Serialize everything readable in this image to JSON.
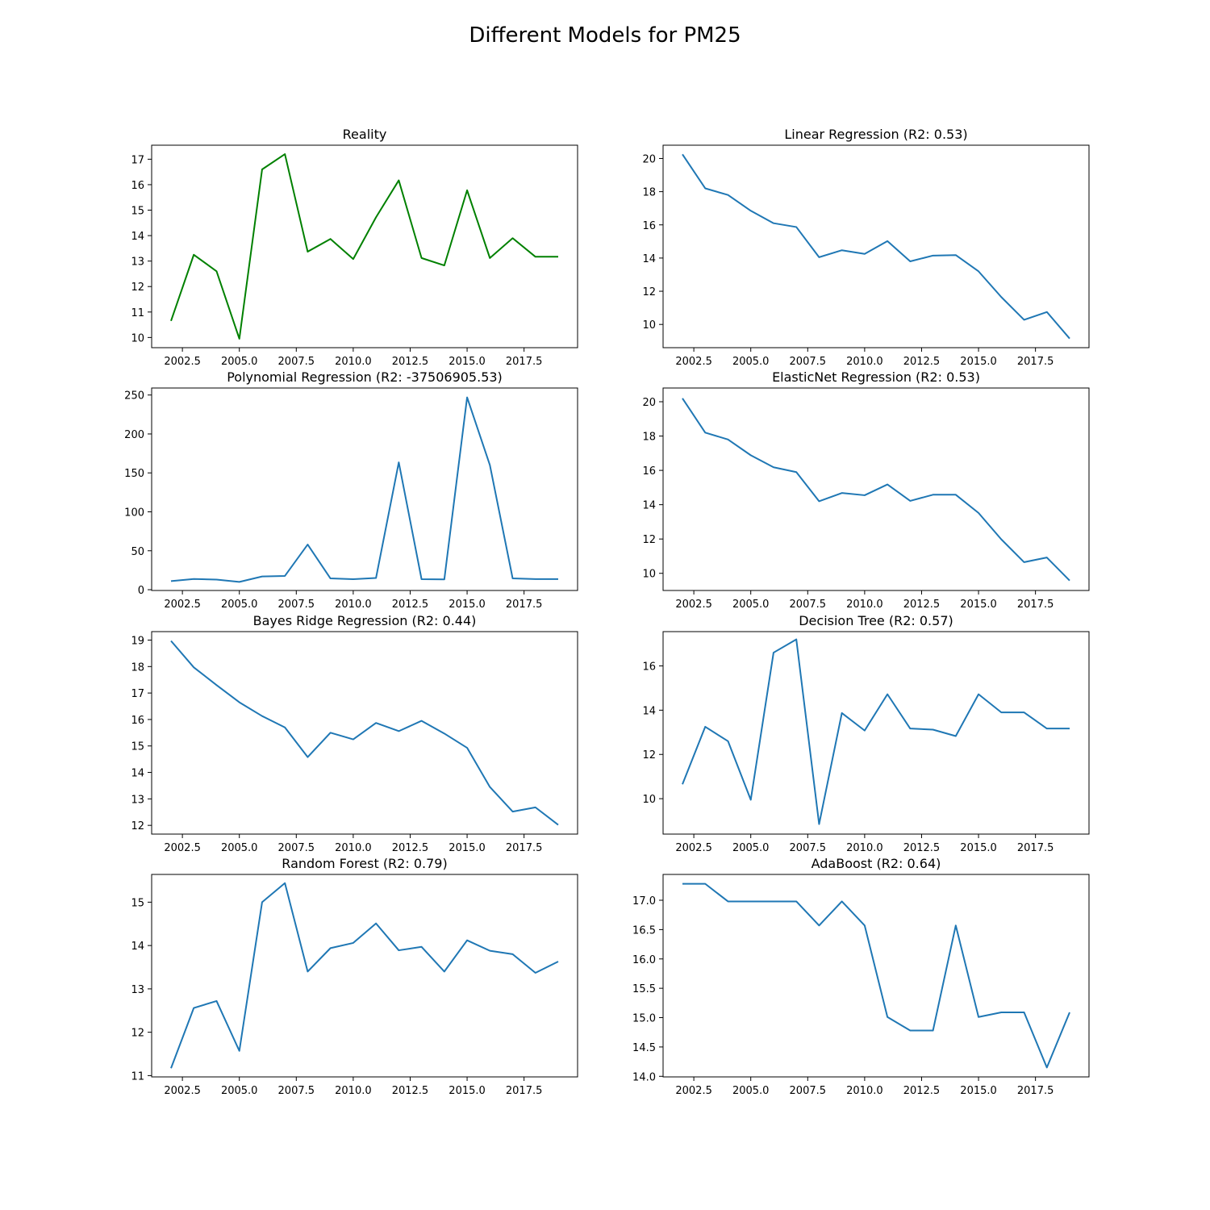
{
  "figure": {
    "suptitle": "Different Models for PM25"
  },
  "colors": {
    "reality": "#008000",
    "model": "#1f77b4",
    "axes": "#000000",
    "background": "#ffffff"
  },
  "chart_data": [
    {
      "type": "line",
      "title": "Reality",
      "color": "#008000",
      "x": [
        2002,
        2003,
        2004,
        2005,
        2006,
        2007,
        2008,
        2009,
        2010,
        2011,
        2012,
        2013,
        2014,
        2015,
        2016,
        2017,
        2018,
        2019
      ],
      "values": [
        10.65,
        13.25,
        12.6,
        9.95,
        16.6,
        17.2,
        13.37,
        13.87,
        13.08,
        14.72,
        16.17,
        13.12,
        12.83,
        15.78,
        13.12,
        13.9,
        13.17,
        13.17
      ],
      "xlim": [
        2001.15,
        2019.85
      ],
      "ylim": [
        9.6,
        17.55
      ],
      "xticks": [
        2002.5,
        2005.0,
        2007.5,
        2010.0,
        2012.5,
        2015.0,
        2017.5
      ],
      "xticklabels": [
        "2002.5",
        "2005.0",
        "2007.5",
        "2010.0",
        "2012.5",
        "2015.0",
        "2017.5"
      ],
      "yticks": [
        10,
        11,
        12,
        13,
        14,
        15,
        16,
        17
      ],
      "yticklabels": [
        "10",
        "11",
        "12",
        "13",
        "14",
        "15",
        "16",
        "17"
      ]
    },
    {
      "type": "line",
      "title": "Linear Regression (R2: 0.53)",
      "color": "#1f77b4",
      "x": [
        2002,
        2003,
        2004,
        2005,
        2006,
        2007,
        2008,
        2009,
        2010,
        2011,
        2012,
        2013,
        2014,
        2015,
        2016,
        2017,
        2018,
        2019
      ],
      "values": [
        20.25,
        18.2,
        17.8,
        16.85,
        16.1,
        15.87,
        14.05,
        14.47,
        14.25,
        15.02,
        13.8,
        14.15,
        14.18,
        13.2,
        11.65,
        10.28,
        10.75,
        9.15
      ],
      "xlim": [
        2001.15,
        2019.85
      ],
      "ylim": [
        8.6,
        20.8
      ],
      "xticks": [
        2002.5,
        2005.0,
        2007.5,
        2010.0,
        2012.5,
        2015.0,
        2017.5
      ],
      "xticklabels": [
        "2002.5",
        "2005.0",
        "2007.5",
        "2010.0",
        "2012.5",
        "2015.0",
        "2017.5"
      ],
      "yticks": [
        10,
        12,
        14,
        16,
        18,
        20
      ],
      "yticklabels": [
        "10",
        "12",
        "14",
        "16",
        "18",
        "20"
      ]
    },
    {
      "type": "line",
      "title": "Polynomial Regression (R2: -37506905.53)",
      "color": "#1f77b4",
      "x": [
        2002,
        2003,
        2004,
        2005,
        2006,
        2007,
        2008,
        2009,
        2010,
        2011,
        2012,
        2013,
        2014,
        2015,
        2016,
        2017,
        2018,
        2019
      ],
      "values": [
        11,
        13.8,
        13,
        10,
        17,
        17.7,
        58,
        14.5,
        13.5,
        15,
        163.5,
        13.5,
        13.3,
        247,
        160,
        14.5,
        13.6,
        13.6
      ],
      "xlim": [
        2001.15,
        2019.85
      ],
      "ylim": [
        -1,
        259
      ],
      "xticks": [
        2002.5,
        2005.0,
        2007.5,
        2010.0,
        2012.5,
        2015.0,
        2017.5
      ],
      "xticklabels": [
        "2002.5",
        "2005.0",
        "2007.5",
        "2010.0",
        "2012.5",
        "2015.0",
        "2017.5"
      ],
      "yticks": [
        0,
        50,
        100,
        150,
        200,
        250
      ],
      "yticklabels": [
        "0",
        "50",
        "100",
        "150",
        "200",
        "250"
      ]
    },
    {
      "type": "line",
      "title": "ElasticNet Regression (R2: 0.53)",
      "color": "#1f77b4",
      "x": [
        2002,
        2003,
        2004,
        2005,
        2006,
        2007,
        2008,
        2009,
        2010,
        2011,
        2012,
        2013,
        2014,
        2015,
        2016,
        2017,
        2018,
        2019
      ],
      "values": [
        20.2,
        18.2,
        17.8,
        16.88,
        16.18,
        15.9,
        14.2,
        14.68,
        14.55,
        15.18,
        14.22,
        14.58,
        14.58,
        13.52,
        11.98,
        10.65,
        10.92,
        9.58
      ],
      "xlim": [
        2001.15,
        2019.85
      ],
      "ylim": [
        9.0,
        20.8
      ],
      "xticks": [
        2002.5,
        2005.0,
        2007.5,
        2010.0,
        2012.5,
        2015.0,
        2017.5
      ],
      "xticklabels": [
        "2002.5",
        "2005.0",
        "2007.5",
        "2010.0",
        "2012.5",
        "2015.0",
        "2017.5"
      ],
      "yticks": [
        10,
        12,
        14,
        16,
        18,
        20
      ],
      "yticklabels": [
        "10",
        "12",
        "14",
        "16",
        "18",
        "20"
      ]
    },
    {
      "type": "line",
      "title": "Bayes Ridge Regression (R2: 0.44)",
      "color": "#1f77b4",
      "x": [
        2002,
        2003,
        2004,
        2005,
        2006,
        2007,
        2008,
        2009,
        2010,
        2011,
        2012,
        2013,
        2014,
        2015,
        2016,
        2017,
        2018,
        2019
      ],
      "values": [
        18.97,
        17.97,
        17.3,
        16.65,
        16.13,
        15.7,
        14.58,
        15.5,
        15.25,
        15.87,
        15.56,
        15.95,
        15.47,
        14.93,
        13.45,
        12.52,
        12.68,
        12.02
      ],
      "xlim": [
        2001.15,
        2019.85
      ],
      "ylim": [
        11.67,
        19.32
      ],
      "xticks": [
        2002.5,
        2005.0,
        2007.5,
        2010.0,
        2012.5,
        2015.0,
        2017.5
      ],
      "xticklabels": [
        "2002.5",
        "2005.0",
        "2007.5",
        "2010.0",
        "2012.5",
        "2015.0",
        "2017.5"
      ],
      "yticks": [
        12,
        13,
        14,
        15,
        16,
        17,
        18,
        19
      ],
      "yticklabels": [
        "12",
        "13",
        "14",
        "15",
        "16",
        "17",
        "18",
        "19"
      ]
    },
    {
      "type": "line",
      "title": "Decision Tree (R2: 0.57)",
      "color": "#1f77b4",
      "x": [
        2002,
        2003,
        2004,
        2005,
        2006,
        2007,
        2008,
        2009,
        2010,
        2011,
        2012,
        2013,
        2014,
        2015,
        2016,
        2017,
        2018,
        2019
      ],
      "values": [
        10.65,
        13.25,
        12.6,
        9.95,
        16.6,
        17.2,
        8.85,
        13.87,
        13.08,
        14.72,
        13.17,
        13.12,
        12.83,
        14.72,
        13.9,
        13.9,
        13.17,
        13.17
      ],
      "xlim": [
        2001.15,
        2019.85
      ],
      "ylim": [
        8.4,
        17.55
      ],
      "xticks": [
        2002.5,
        2005.0,
        2007.5,
        2010.0,
        2012.5,
        2015.0,
        2017.5
      ],
      "xticklabels": [
        "2002.5",
        "2005.0",
        "2007.5",
        "2010.0",
        "2012.5",
        "2015.0",
        "2017.5"
      ],
      "yticks": [
        10,
        12,
        14,
        16
      ],
      "yticklabels": [
        "10",
        "12",
        "14",
        "16"
      ]
    },
    {
      "type": "line",
      "title": "Random Forest (R2: 0.79)",
      "color": "#1f77b4",
      "x": [
        2002,
        2003,
        2004,
        2005,
        2006,
        2007,
        2008,
        2009,
        2010,
        2011,
        2012,
        2013,
        2014,
        2015,
        2016,
        2017,
        2018,
        2019
      ],
      "values": [
        11.17,
        12.56,
        12.72,
        11.57,
        15.0,
        15.44,
        13.4,
        13.94,
        14.06,
        14.51,
        13.89,
        13.97,
        13.4,
        14.12,
        13.88,
        13.8,
        13.37,
        13.63
      ],
      "xlim": [
        2001.15,
        2019.85
      ],
      "ylim": [
        10.97,
        15.64
      ],
      "xticks": [
        2002.5,
        2005.0,
        2007.5,
        2010.0,
        2012.5,
        2015.0,
        2017.5
      ],
      "xticklabels": [
        "2002.5",
        "2005.0",
        "2007.5",
        "2010.0",
        "2012.5",
        "2015.0",
        "2017.5"
      ],
      "yticks": [
        11,
        12,
        13,
        14,
        15
      ],
      "yticklabels": [
        "11",
        "12",
        "13",
        "14",
        "15"
      ]
    },
    {
      "type": "line",
      "title": "AdaBoost (R2: 0.64)",
      "color": "#1f77b4",
      "x": [
        2002,
        2003,
        2004,
        2005,
        2006,
        2007,
        2008,
        2009,
        2010,
        2011,
        2012,
        2013,
        2014,
        2015,
        2016,
        2017,
        2018,
        2019
      ],
      "values": [
        17.28,
        17.28,
        16.98,
        16.98,
        16.98,
        16.98,
        16.57,
        16.98,
        16.57,
        15.01,
        14.78,
        14.78,
        16.57,
        15.01,
        15.09,
        15.09,
        14.15,
        15.09
      ],
      "xlim": [
        2001.15,
        2019.85
      ],
      "ylim": [
        13.99,
        17.44
      ],
      "xticks": [
        2002.5,
        2005.0,
        2007.5,
        2010.0,
        2012.5,
        2015.0,
        2017.5
      ],
      "xticklabels": [
        "2002.5",
        "2005.0",
        "2007.5",
        "2010.0",
        "2012.5",
        "2015.0",
        "2017.5"
      ],
      "yticks": [
        14.0,
        14.5,
        15.0,
        15.5,
        16.0,
        16.5,
        17.0
      ],
      "yticklabels": [
        "14.0",
        "14.5",
        "15.0",
        "15.5",
        "16.0",
        "16.5",
        "17.0"
      ]
    }
  ]
}
